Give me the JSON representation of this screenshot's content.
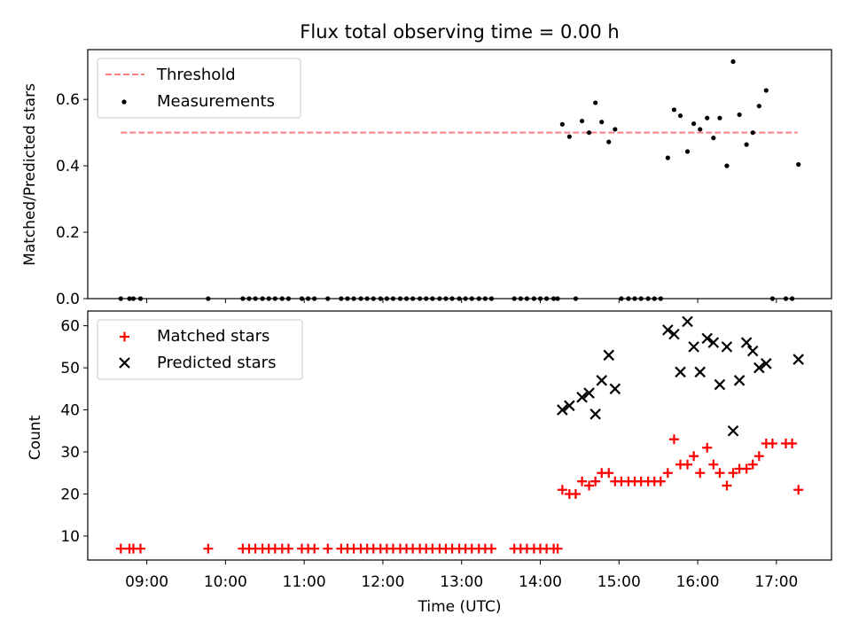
{
  "chart_data": [
    {
      "type": "scatter",
      "title": "Flux total observing time = 0.00 h",
      "xlabel": "",
      "ylabel": "Matched/Predicted stars",
      "xlim": [
        8.25,
        17.7
      ],
      "ylim": [
        0.0,
        0.75
      ],
      "yticks": [
        0.0,
        0.2,
        0.4,
        0.6
      ],
      "ytick_labels": [
        "0.0",
        "0.2",
        "0.4",
        "0.6"
      ],
      "grid": false,
      "legend": "top-left",
      "threshold": {
        "name": "Threshold",
        "y": 0.5,
        "x_range": [
          8.67,
          17.27
        ],
        "color": "#ff7f7f",
        "style": "dashed"
      },
      "series": [
        {
          "name": "Measurements",
          "color": "#000000",
          "x": [
            8.67,
            8.78,
            8.83,
            8.92,
            9.78,
            10.22,
            10.3,
            10.38,
            10.47,
            10.55,
            10.63,
            10.72,
            10.8,
            10.97,
            11.05,
            11.13,
            11.3,
            11.47,
            11.55,
            11.63,
            11.72,
            11.8,
            11.88,
            11.97,
            12.05,
            12.13,
            12.22,
            12.3,
            12.38,
            12.47,
            12.55,
            12.63,
            12.72,
            12.8,
            12.88,
            12.97,
            13.05,
            13.13,
            13.22,
            13.3,
            13.38,
            13.67,
            13.75,
            13.83,
            13.92,
            14.0,
            14.08,
            14.17,
            14.22,
            14.28,
            14.37,
            14.45,
            14.53,
            14.62,
            14.7,
            14.78,
            14.87,
            14.95,
            15.03,
            15.12,
            15.2,
            15.28,
            15.37,
            15.45,
            15.53,
            15.62,
            15.7,
            15.78,
            15.87,
            15.95,
            16.03,
            16.12,
            16.2,
            16.28,
            16.37,
            16.45,
            16.53,
            16.62,
            16.7,
            16.78,
            16.87,
            16.95,
            17.12,
            17.2,
            17.28
          ],
          "y": [
            0.0,
            0.0,
            0.0,
            0.0,
            0.0,
            0.0,
            0.0,
            0.0,
            0.0,
            0.0,
            0.0,
            0.0,
            0.0,
            0.0,
            0.0,
            0.0,
            0.0,
            0.0,
            0.0,
            0.0,
            0.0,
            0.0,
            0.0,
            0.0,
            0.0,
            0.0,
            0.0,
            0.0,
            0.0,
            0.0,
            0.0,
            0.0,
            0.0,
            0.0,
            0.0,
            0.0,
            0.0,
            0.0,
            0.0,
            0.0,
            0.0,
            0.0,
            0.0,
            0.0,
            0.0,
            0.0,
            0.0,
            0.0,
            0.0,
            0.525,
            0.488,
            0.0,
            0.535,
            0.5,
            0.59,
            0.532,
            0.472,
            0.51,
            0.0,
            0.0,
            0.0,
            0.0,
            0.0,
            0.0,
            0.0,
            0.424,
            0.569,
            0.551,
            0.443,
            0.527,
            0.51,
            0.544,
            0.484,
            0.544,
            0.4,
            0.714,
            0.554,
            0.464,
            0.5,
            0.58,
            0.627,
            0.0,
            0.0,
            0.0,
            0.404
          ]
        }
      ]
    },
    {
      "type": "scatter",
      "title": "",
      "xlabel": "Time (UTC)",
      "ylabel": "Count",
      "xlim": [
        8.25,
        17.7
      ],
      "ylim": [
        4.3,
        63.5
      ],
      "xticks": [
        9,
        10,
        11,
        12,
        13,
        14,
        15,
        16,
        17
      ],
      "xtick_labels": [
        "09:00",
        "10:00",
        "11:00",
        "12:00",
        "13:00",
        "14:00",
        "15:00",
        "16:00",
        "17:00"
      ],
      "yticks": [
        10,
        20,
        30,
        40,
        50,
        60
      ],
      "ytick_labels": [
        "10",
        "20",
        "30",
        "40",
        "50",
        "60"
      ],
      "grid": false,
      "legend": "top-left",
      "series": [
        {
          "name": "Matched stars",
          "marker": "plus",
          "color": "#ff0000",
          "x": [
            8.67,
            8.78,
            8.83,
            8.92,
            9.78,
            10.22,
            10.3,
            10.38,
            10.47,
            10.55,
            10.63,
            10.72,
            10.8,
            10.97,
            11.05,
            11.13,
            11.3,
            11.47,
            11.55,
            11.63,
            11.72,
            11.8,
            11.88,
            11.97,
            12.05,
            12.13,
            12.22,
            12.3,
            12.38,
            12.47,
            12.55,
            12.63,
            12.72,
            12.8,
            12.88,
            12.97,
            13.05,
            13.13,
            13.22,
            13.3,
            13.38,
            13.67,
            13.75,
            13.83,
            13.92,
            14.0,
            14.08,
            14.17,
            14.22,
            14.28,
            14.37,
            14.45,
            14.53,
            14.62,
            14.7,
            14.78,
            14.87,
            14.95,
            15.03,
            15.12,
            15.2,
            15.28,
            15.37,
            15.45,
            15.53,
            15.62,
            15.7,
            15.78,
            15.87,
            15.95,
            16.03,
            16.12,
            16.2,
            16.28,
            16.37,
            16.45,
            16.53,
            16.62,
            16.7,
            16.78,
            16.87,
            16.95,
            17.12,
            17.2,
            17.28
          ],
          "y": [
            7,
            7,
            7,
            7,
            7,
            7,
            7,
            7,
            7,
            7,
            7,
            7,
            7,
            7,
            7,
            7,
            7,
            7,
            7,
            7,
            7,
            7,
            7,
            7,
            7,
            7,
            7,
            7,
            7,
            7,
            7,
            7,
            7,
            7,
            7,
            7,
            7,
            7,
            7,
            7,
            7,
            7,
            7,
            7,
            7,
            7,
            7,
            7,
            7,
            21,
            20,
            20,
            23,
            22,
            23,
            25,
            25,
            23,
            23,
            23,
            23,
            23,
            23,
            23,
            23,
            25,
            33,
            27,
            27,
            29,
            25,
            31,
            27,
            25,
            22,
            25,
            26,
            26,
            27,
            29,
            32,
            32,
            32,
            32,
            21
          ]
        },
        {
          "name": "Predicted stars",
          "marker": "x",
          "color": "#000000",
          "x": [
            14.28,
            14.37,
            14.53,
            14.62,
            14.7,
            14.78,
            14.87,
            14.95,
            15.62,
            15.7,
            15.78,
            15.87,
            15.95,
            16.03,
            16.12,
            16.2,
            16.28,
            16.37,
            16.45,
            16.53,
            16.62,
            16.7,
            16.78,
            16.87,
            17.28
          ],
          "y": [
            40,
            41,
            43,
            44,
            39,
            47,
            53,
            45,
            59,
            58,
            49,
            61,
            55,
            49,
            57,
            56,
            46,
            55,
            35,
            47,
            56,
            54,
            50,
            51,
            52
          ]
        }
      ]
    }
  ]
}
